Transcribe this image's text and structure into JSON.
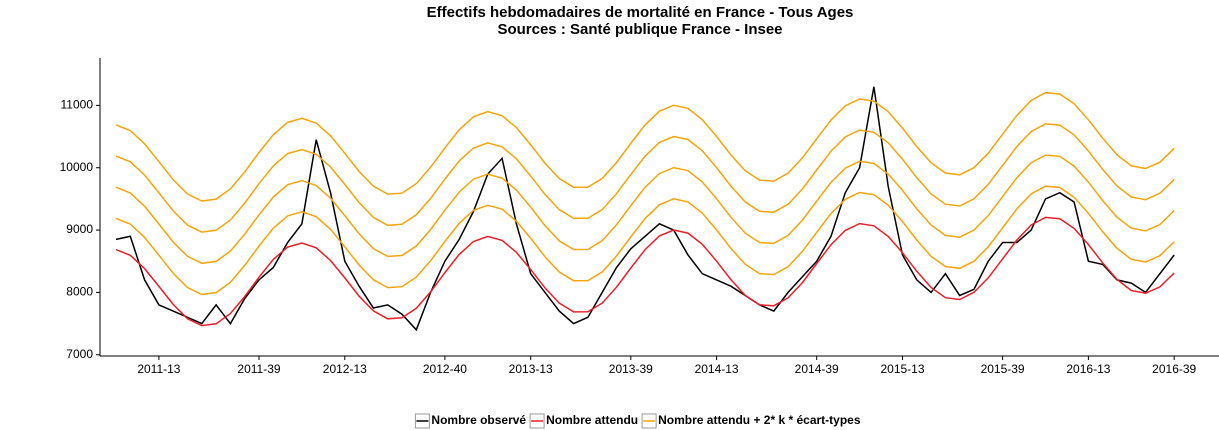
{
  "chart_data": {
    "type": "line",
    "title": "Effectifs hebdomadaires de mortalité en France - Tous Ages",
    "subtitle": "Sources : Santé publique France - Insee",
    "categories": [
      null,
      null,
      null,
      "2011-13",
      null,
      null,
      null,
      null,
      null,
      null,
      "2011-39",
      null,
      null,
      null,
      null,
      null,
      "2012-13",
      null,
      null,
      null,
      null,
      null,
      null,
      "2012-40",
      null,
      null,
      null,
      null,
      null,
      "2013-13",
      null,
      null,
      null,
      null,
      null,
      null,
      "2013-39",
      null,
      null,
      null,
      null,
      null,
      "2014-13",
      null,
      null,
      null,
      null,
      null,
      null,
      "2014-39",
      null,
      null,
      null,
      null,
      null,
      "2015-13",
      null,
      null,
      null,
      null,
      null,
      null,
      "2015-39",
      null,
      null,
      null,
      null,
      null,
      "2016-13",
      null,
      null,
      null,
      null,
      null,
      "2016-39"
    ],
    "ylim": [
      6980,
      11760
    ],
    "yticks": [
      7000,
      8000,
      9000,
      10000,
      11000
    ],
    "series": [
      {
        "name": "Nombre observé",
        "color": "#000000",
        "values": [
          8850,
          8900,
          8200,
          7800,
          7700,
          7600,
          7500,
          7800,
          7500,
          7900,
          8200,
          8400,
          8800,
          9100,
          10450,
          9600,
          8500,
          8100,
          7750,
          7800,
          7650,
          7400,
          8000,
          8500,
          8850,
          9300,
          9900,
          10150,
          9100,
          8300,
          8000,
          7700,
          7500,
          7600,
          8000,
          8400,
          8700,
          8900,
          9100,
          9000,
          8600,
          8300,
          8200,
          8100,
          7950,
          7800,
          7700,
          8000,
          8250,
          8500,
          8900,
          9600,
          10000,
          11300,
          9700,
          8600,
          8200,
          8000,
          8300,
          7950,
          8050,
          8500,
          8800,
          8800,
          9000,
          9500,
          9600,
          9450,
          8500,
          8450,
          8200,
          8150,
          8000,
          8300,
          8600
        ]
      },
      {
        "name": "Nombre attendu",
        "color": "#e8202a",
        "values": [
          8687,
          8595,
          8382,
          8097,
          7807,
          7579,
          7467,
          7497,
          7662,
          7933,
          8244,
          8530,
          8727,
          8793,
          8715,
          8512,
          8232,
          7940,
          7703,
          7577,
          7592,
          7745,
          8008,
          8318,
          8609,
          8817,
          8898,
          8834,
          8643,
          8366,
          8072,
          7827,
          7688,
          7689,
          7829,
          8084,
          8391,
          8687,
          8906,
          9001,
          8952,
          8771,
          8501,
          8206,
          7952,
          7801,
          7786,
          7914,
          8158,
          8464,
          8765,
          8994,
          9103,
          9068,
          8899,
          8636,
          8339,
          8079,
          7915,
          7886,
          8001,
          8234,
          8537,
          8841,
          9081,
          9203,
          9183,
          9026,
          8769,
          8473,
          8207,
          8031,
          7987,
          8089,
          8312
        ]
      },
      {
        "name": "Nombre attendu + 2* k * écart-types",
        "color": "#f5a40c",
        "values": [
          9187,
          9095,
          8882,
          8597,
          8307,
          8079,
          7967,
          7997,
          8162,
          8433,
          8744,
          9030,
          9227,
          9293,
          9215,
          9012,
          8732,
          8440,
          8203,
          8077,
          8092,
          8245,
          8508,
          8818,
          9109,
          9317,
          9398,
          9334,
          9143,
          8866,
          8572,
          8327,
          8188,
          8189,
          8329,
          8584,
          8891,
          9187,
          9406,
          9501,
          9452,
          9271,
          9001,
          8706,
          8452,
          8301,
          8286,
          8414,
          8658,
          8964,
          9265,
          9494,
          9603,
          9568,
          9399,
          9136,
          8839,
          8579,
          8415,
          8386,
          8501,
          8734,
          9037,
          9341,
          9581,
          9703,
          9683,
          9526,
          9269,
          8973,
          8707,
          8531,
          8487,
          8589,
          8812
        ]
      },
      {
        "color": "#f5a40c",
        "values": [
          9687,
          9595,
          9382,
          9097,
          8807,
          8579,
          8467,
          8497,
          8662,
          8933,
          9244,
          9530,
          9727,
          9793,
          9715,
          9512,
          9232,
          8940,
          8703,
          8577,
          8592,
          8745,
          9008,
          9318,
          9609,
          9817,
          9898,
          9834,
          9643,
          9366,
          9072,
          8827,
          8688,
          8689,
          8829,
          9084,
          9391,
          9687,
          9906,
          10001,
          9952,
          9771,
          9501,
          9206,
          8952,
          8801,
          8786,
          8914,
          9158,
          9464,
          9765,
          9994,
          10103,
          10068,
          9899,
          9636,
          9339,
          9079,
          8915,
          8886,
          9001,
          9234,
          9537,
          9841,
          10081,
          10203,
          10183,
          10026,
          9769,
          9473,
          9207,
          9031,
          8987,
          9089,
          9312
        ]
      },
      {
        "color": "#f5a40c",
        "values": [
          10187,
          10095,
          9882,
          9597,
          9307,
          9079,
          8967,
          8997,
          9162,
          9433,
          9744,
          10030,
          10227,
          10293,
          10215,
          10012,
          9732,
          9440,
          9203,
          9077,
          9092,
          9245,
          9508,
          9818,
          10109,
          10317,
          10398,
          10334,
          10143,
          9866,
          9572,
          9327,
          9188,
          9189,
          9329,
          9584,
          9891,
          10187,
          10406,
          10501,
          10452,
          10271,
          10001,
          9706,
          9452,
          9301,
          9286,
          9414,
          9658,
          9964,
          10265,
          10494,
          10603,
          10568,
          10399,
          10136,
          9839,
          9579,
          9415,
          9386,
          9501,
          9734,
          10037,
          10341,
          10581,
          10703,
          10683,
          10526,
          10269,
          9973,
          9707,
          9531,
          9487,
          9589,
          9812
        ]
      },
      {
        "color": "#f5a40c",
        "values": [
          10687,
          10595,
          10382,
          10097,
          9807,
          9579,
          9467,
          9497,
          9662,
          9933,
          10244,
          10530,
          10727,
          10793,
          10715,
          10512,
          10232,
          9940,
          9703,
          9577,
          9592,
          9745,
          10008,
          10318,
          10609,
          10817,
          10898,
          10834,
          10643,
          10366,
          10072,
          9827,
          9688,
          9689,
          9829,
          10084,
          10391,
          10687,
          10906,
          11001,
          10952,
          10771,
          10501,
          10206,
          9952,
          9801,
          9786,
          9914,
          10158,
          10464,
          10765,
          10994,
          11103,
          11068,
          10899,
          10636,
          10339,
          10079,
          9915,
          9886,
          10001,
          10234,
          10537,
          10841,
          11081,
          11203,
          11183,
          11026,
          10769,
          10473,
          10207,
          10031,
          9987,
          10089,
          10312
        ]
      }
    ]
  }
}
